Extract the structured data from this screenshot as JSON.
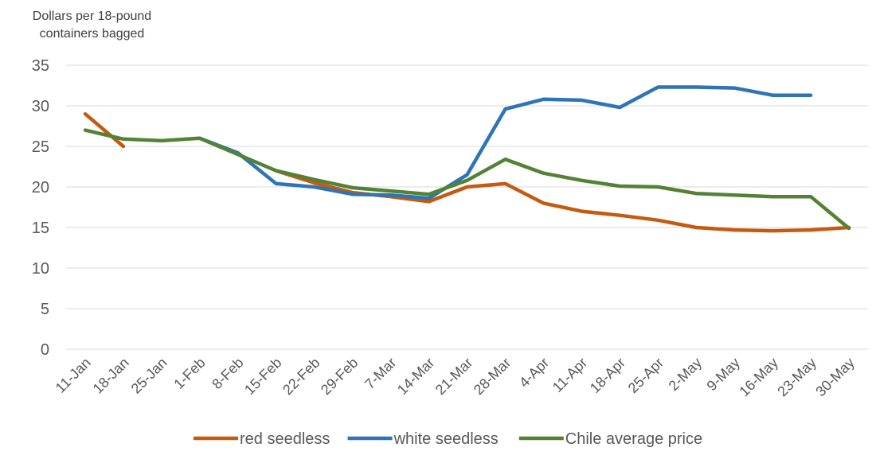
{
  "chart_data": {
    "type": "line",
    "title": "",
    "ylabel_lines": [
      "Dollars per 18-pound",
      "containers bagged"
    ],
    "xlabel": "",
    "ylim": [
      0,
      35
    ],
    "yticks": [
      0,
      5,
      10,
      15,
      20,
      25,
      30,
      35
    ],
    "grid": "horizontal",
    "legend_position": "bottom",
    "categories": [
      "11-Jan",
      "18-Jan",
      "25-Jan",
      "1-Feb",
      "8-Feb",
      "15-Feb",
      "22-Feb",
      "29-Feb",
      "7-Mar",
      "14-Mar",
      "21-Mar",
      "28-Mar",
      "4-Apr",
      "11-Apr",
      "18-Apr",
      "25-Apr",
      "2-May",
      "9-May",
      "16-May",
      "23-May",
      "30-May"
    ],
    "series": [
      {
        "name": "red seedless",
        "color": "#C55A11",
        "values": [
          29,
          25,
          null,
          null,
          null,
          22,
          20.5,
          19.3,
          18.8,
          18.2,
          20,
          20.4,
          18,
          17,
          16.5,
          15.9,
          15,
          14.7,
          14.6,
          14.7,
          15
        ]
      },
      {
        "name": "white seedless",
        "color": "#2E75B6",
        "values": [
          null,
          null,
          null,
          26,
          24.2,
          20.4,
          20,
          19.1,
          19,
          18.6,
          21.5,
          29.6,
          30.8,
          30.7,
          29.8,
          32.3,
          32.3,
          32.2,
          31.3,
          31.3,
          null
        ]
      },
      {
        "name": "Chile average price",
        "color": "#548235",
        "values": [
          27,
          25.9,
          25.7,
          26,
          24,
          22,
          20.9,
          19.9,
          19.5,
          19.1,
          20.8,
          23.4,
          21.7,
          20.8,
          20.1,
          20,
          19.2,
          19,
          18.8,
          18.8,
          14.9
        ]
      }
    ]
  }
}
